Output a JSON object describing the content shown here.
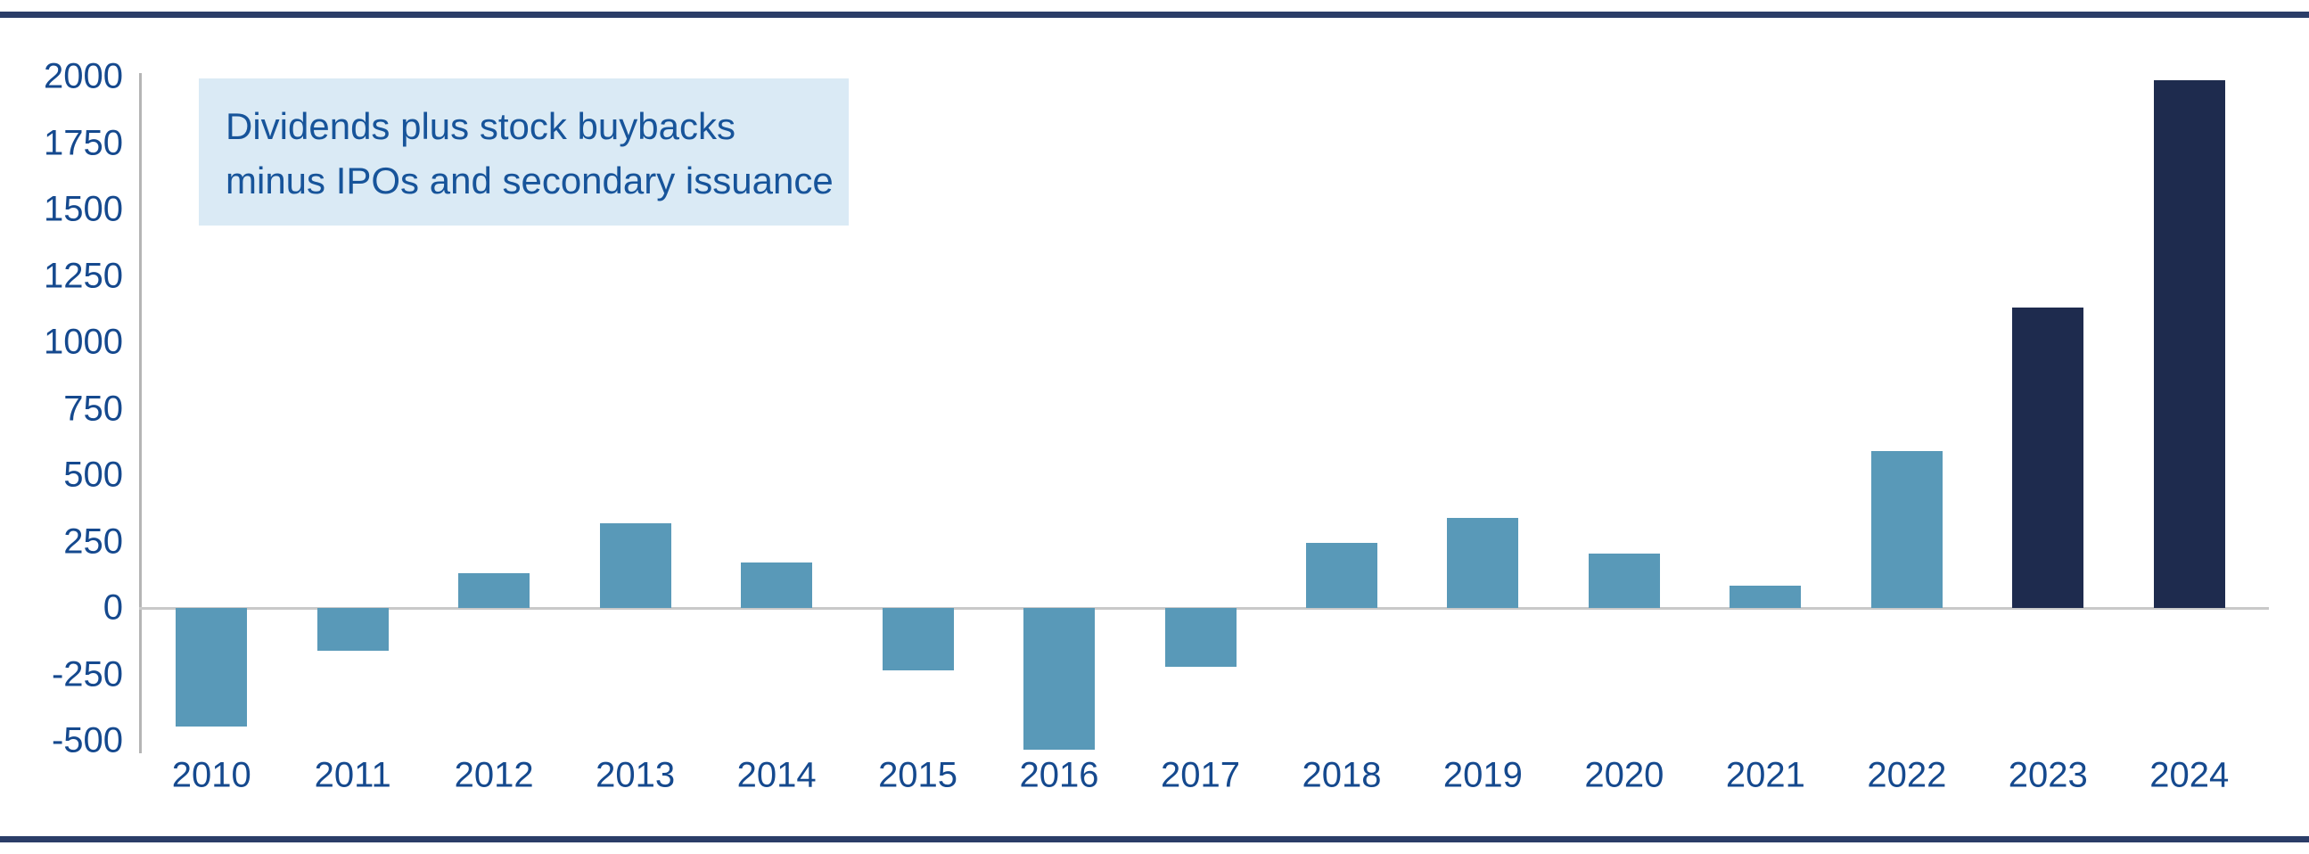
{
  "page": {
    "background": "#ffffff",
    "top_rule_color": "#2b3d68",
    "bottom_rule_color": "#2b3d68"
  },
  "annotation": {
    "line1": "Dividends plus stock buybacks",
    "line2": "minus IPOs and secondary issuance",
    "bg_color": "#daeaf5",
    "text_color": "#17549a"
  },
  "axis": {
    "tick_label_color": "#15498e",
    "axis_line_color": "#b5b5b5",
    "zero_line_color": "#c9c9c9"
  },
  "chart_data": {
    "type": "bar",
    "title": "",
    "xlabel": "",
    "ylabel": "",
    "annotation_text": "Dividends plus stock buybacks minus IPOs and secondary issuance",
    "categories": [
      "2010",
      "2011",
      "2012",
      "2013",
      "2014",
      "2015",
      "2016",
      "2017",
      "2018",
      "2019",
      "2020",
      "2021",
      "2022",
      "2023",
      "2024"
    ],
    "values": [
      -445,
      -160,
      130,
      320,
      170,
      -235,
      -535,
      -220,
      245,
      340,
      205,
      85,
      590,
      1130,
      1985
    ],
    "bar_colors": [
      "#5999b8",
      "#5999b8",
      "#5999b8",
      "#5999b8",
      "#5999b8",
      "#5999b8",
      "#5999b8",
      "#5999b8",
      "#5999b8",
      "#5999b8",
      "#5999b8",
      "#5999b8",
      "#5999b8",
      "#1e2b4e",
      "#1e2b4e"
    ],
    "color_legend": {
      "light_blue_bars": "#5999b8",
      "dark_navy_bars": "#1e2b4e"
    },
    "yticks": [
      2000,
      1750,
      1500,
      1250,
      1000,
      750,
      500,
      250,
      0,
      -250,
      -500
    ],
    "ylim": [
      -560,
      2030
    ],
    "grid": false,
    "legend_position": "none"
  }
}
